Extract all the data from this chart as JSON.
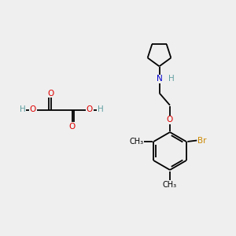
{
  "background_color": "#efefef",
  "bond_color": "#000000",
  "atom_colors": {
    "O": "#e00000",
    "N": "#0000cc",
    "Br": "#cc8800",
    "C": "#000000",
    "H": "#5f9ea0"
  },
  "font_size": 7.5,
  "lw": 1.3
}
